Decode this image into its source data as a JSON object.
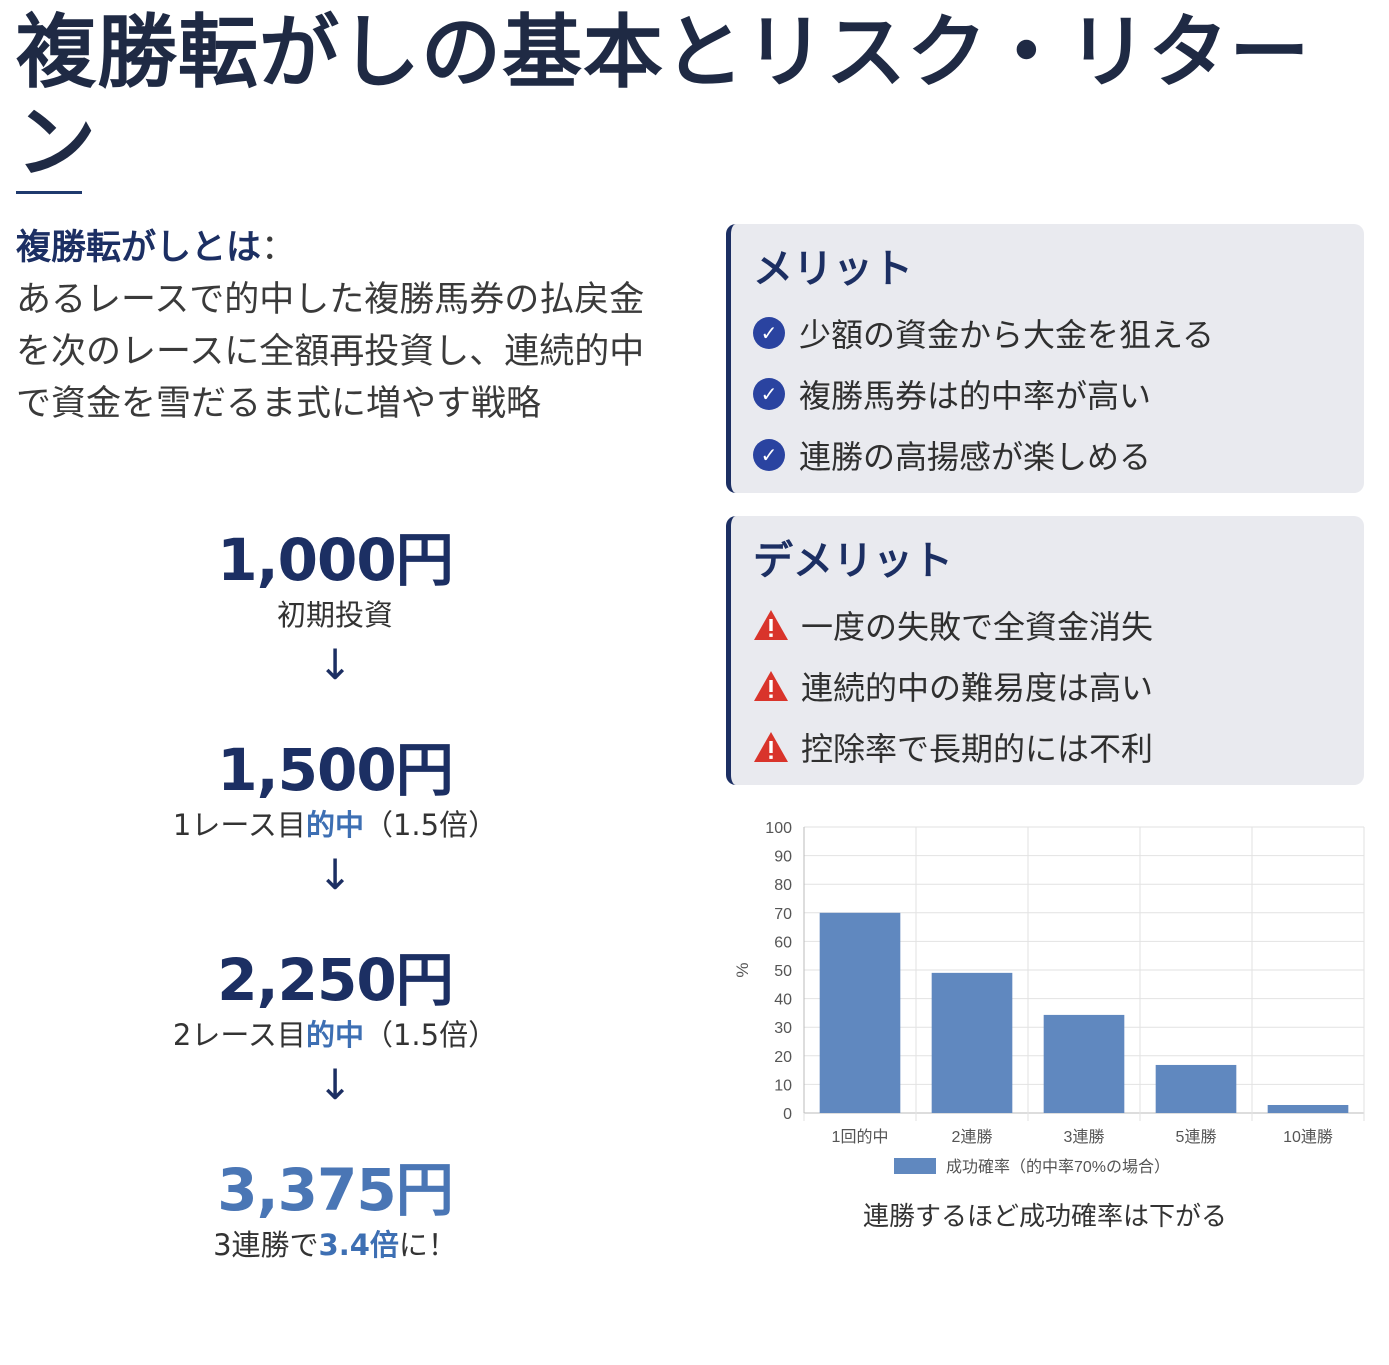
{
  "title": "複勝転がしの基本とリスク・リターン",
  "definition": {
    "term": "複勝転がしとは",
    "sep": "：",
    "text": "あるレースで的中した複勝馬券の払戻金を次のレースに全額再投資し、連続的中で資金を雪だるま式に増やす戦略"
  },
  "flow": {
    "arrow": "↓",
    "steps": [
      {
        "amount": "1,000円",
        "pre": "初期投資",
        "hl": "",
        "post": ""
      },
      {
        "amount": "1,500円",
        "pre": "1レース目",
        "hl": "的中",
        "post": "（1.5倍）"
      },
      {
        "amount": "2,250円",
        "pre": "2レース目",
        "hl": "的中",
        "post": "（1.5倍）"
      },
      {
        "amount": "3,375円",
        "pre": "3連勝で",
        "hl": "3.4倍",
        "post": "に！"
      }
    ]
  },
  "merits": {
    "title": "メリット",
    "icon": "check-circle-icon",
    "items": [
      "少額の資金から大金を狙える",
      "複勝馬券は的中率が高い",
      "連勝の高揚感が楽しめる"
    ]
  },
  "demerits": {
    "title": "デメリット",
    "icon": "warning-icon",
    "items": [
      "一度の失敗で全資金消失",
      "連続的中の難易度は高い",
      "控除率で長期的には不利"
    ]
  },
  "colors": {
    "navy": "#1c2f63",
    "accent_blue": "#3d6fb3",
    "bar": "#6088bf",
    "check": "#2a43a0",
    "warning": "#d9342b"
  },
  "chart_data": {
    "type": "bar",
    "categories": [
      "1回的中",
      "2連勝",
      "3連勝",
      "5連勝",
      "10連勝"
    ],
    "series": [
      {
        "name": "成功確率（的中率70%の場合）",
        "values": [
          70,
          49,
          34.3,
          16.8,
          2.8
        ]
      }
    ],
    "ylabel": "%",
    "ylim": [
      0,
      100
    ],
    "yticks": [
      0,
      10,
      20,
      30,
      40,
      50,
      60,
      70,
      80,
      90,
      100
    ],
    "grid": true,
    "legend": "bottom",
    "caption": "連勝するほど成功確率は下がる"
  }
}
